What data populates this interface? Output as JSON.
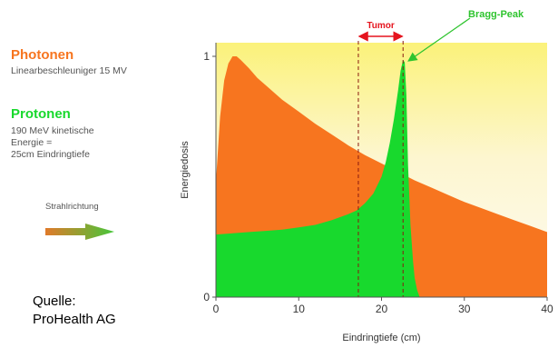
{
  "legend": {
    "photon": {
      "title": "Photonen",
      "subtitle": "Linearbeschleuniger 15 MV",
      "color": "#f7751f"
    },
    "proton": {
      "title": "Protonen",
      "lines": [
        "190 MeV kinetische",
        "Energie =",
        "25cm Eindringtiefe"
      ],
      "color": "#18d92d"
    },
    "direction_label": "Strahlrichtung"
  },
  "source": {
    "line1": "Quelle:",
    "line2": "ProHealth AG"
  },
  "chart_data": {
    "type": "area",
    "xlabel": "Eindringtiefe (cm)",
    "ylabel": "Energiedosis",
    "xlim": [
      0,
      40
    ],
    "ylim": [
      0,
      1
    ],
    "x_ticks": [
      0,
      10,
      20,
      30,
      40
    ],
    "y_ticks": [
      0,
      1
    ],
    "grid": false,
    "series": [
      {
        "name": "Photonen",
        "color": "#f7751f",
        "x": [
          0,
          0.5,
          1,
          1.5,
          2,
          2.5,
          3,
          4,
          5,
          6,
          8,
          10,
          12,
          14,
          16,
          18,
          20,
          22,
          24,
          26,
          28,
          30,
          32,
          34,
          36,
          38,
          40
        ],
        "y": [
          0.48,
          0.75,
          0.9,
          0.97,
          1.0,
          1.0,
          0.985,
          0.95,
          0.91,
          0.88,
          0.82,
          0.77,
          0.72,
          0.675,
          0.63,
          0.59,
          0.555,
          0.52,
          0.485,
          0.455,
          0.425,
          0.395,
          0.37,
          0.345,
          0.32,
          0.295,
          0.27
        ]
      },
      {
        "name": "Protonen",
        "color": "#18d92d",
        "x": [
          0,
          2,
          4,
          6,
          8,
          10,
          12,
          14,
          16,
          17,
          18,
          19,
          20,
          20.5,
          21,
          21.5,
          22,
          22.3,
          22.6,
          22.8,
          23,
          23.2,
          23.5,
          23.8,
          24,
          24.3,
          24.6
        ],
        "y": [
          0.26,
          0.265,
          0.27,
          0.275,
          0.28,
          0.29,
          0.3,
          0.32,
          0.345,
          0.36,
          0.39,
          0.43,
          0.5,
          0.56,
          0.64,
          0.74,
          0.86,
          0.94,
          0.985,
          0.975,
          0.84,
          0.55,
          0.3,
          0.15,
          0.08,
          0.03,
          0
        ]
      }
    ],
    "annotations": [
      {
        "text": "Tumor",
        "x_start": 17.2,
        "x_end": 22.6,
        "color": "#e5141e"
      },
      {
        "text": "Bragg-Peak",
        "x": 22.6,
        "y": 0.985,
        "color": "#2fc42f"
      }
    ]
  }
}
